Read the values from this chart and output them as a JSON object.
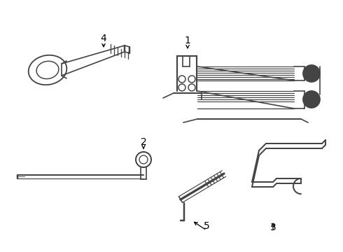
{
  "bg_color": "#ffffff",
  "line_color": "#444444",
  "lw": 1.2,
  "fig_width": 4.9,
  "fig_height": 3.6,
  "dpi": 100
}
